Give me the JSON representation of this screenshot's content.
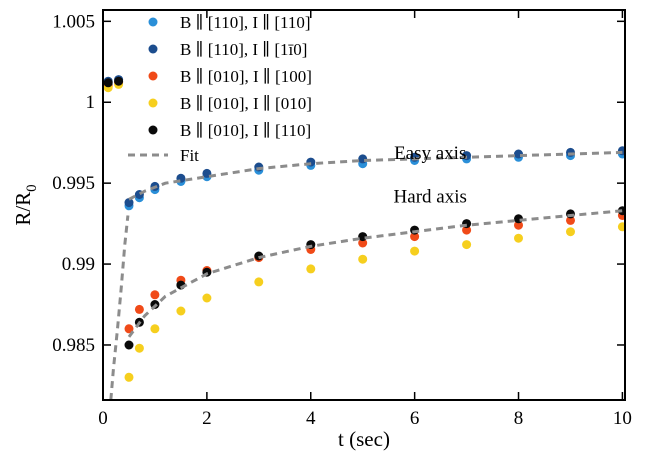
{
  "chart_data": {
    "type": "scatter",
    "xlabel": "t (sec)",
    "ylabel_main": "R/R",
    "ylabel_sub": "0",
    "xlim": [
      0,
      10.05
    ],
    "ylim": [
      0.9816,
      1.0057
    ],
    "x_ticks": [
      0,
      2,
      4,
      6,
      8,
      10
    ],
    "x_tick_labels": [
      "0",
      "2",
      "4",
      "6",
      "8",
      "10"
    ],
    "y_ticks": [
      0.985,
      0.99,
      0.995,
      1.0,
      1.005
    ],
    "y_tick_labels": [
      "0.985",
      "0.99",
      "0.995",
      "1",
      "1.005"
    ],
    "grid": false,
    "legend_position": "top-left",
    "annotations": [
      {
        "text": "Easy axis",
        "x": 6.3,
        "y": 0.9965
      },
      {
        "text": "Hard axis",
        "x": 6.3,
        "y": 0.9938
      }
    ],
    "series": [
      {
        "name": "B ∥ [110], I ∥ [110]",
        "color": "#2a8fd8",
        "marker": "circle",
        "points": [
          [
            0.1,
            1.0011
          ],
          [
            0.3,
            1.0013
          ],
          [
            0.5,
            0.9936
          ],
          [
            0.7,
            0.9941
          ],
          [
            1.0,
            0.9946
          ],
          [
            1.5,
            0.9951
          ],
          [
            2.0,
            0.9954
          ],
          [
            3.0,
            0.9958
          ],
          [
            4.0,
            0.9961
          ],
          [
            5.0,
            0.9962
          ],
          [
            6.0,
            0.9964
          ],
          [
            7.0,
            0.9965
          ],
          [
            8.0,
            0.9966
          ],
          [
            9.0,
            0.9967
          ],
          [
            10.0,
            0.9968
          ]
        ]
      },
      {
        "name": "B ∥ [110], I ∥ [1ī0]",
        "color": "#1c4d8e",
        "marker": "circle",
        "points": [
          [
            0.1,
            1.0013
          ],
          [
            0.3,
            1.0014
          ],
          [
            0.5,
            0.9938
          ],
          [
            0.7,
            0.9943
          ],
          [
            1.0,
            0.9948
          ],
          [
            1.5,
            0.9953
          ],
          [
            2.0,
            0.9956
          ],
          [
            3.0,
            0.996
          ],
          [
            4.0,
            0.9963
          ],
          [
            5.0,
            0.9965
          ],
          [
            6.0,
            0.9966
          ],
          [
            7.0,
            0.9967
          ],
          [
            8.0,
            0.9968
          ],
          [
            9.0,
            0.9969
          ],
          [
            10.0,
            0.997
          ]
        ]
      },
      {
        "name": "B ∥ [010], I ∥ [100]",
        "color": "#f04a18",
        "marker": "circle",
        "points": [
          [
            0.1,
            1.001
          ],
          [
            0.3,
            1.0012
          ],
          [
            0.5,
            0.986
          ],
          [
            0.7,
            0.9872
          ],
          [
            1.0,
            0.9881
          ],
          [
            1.5,
            0.989
          ],
          [
            2.0,
            0.9896
          ],
          [
            3.0,
            0.9904
          ],
          [
            4.0,
            0.9909
          ],
          [
            5.0,
            0.9913
          ],
          [
            6.0,
            0.9917
          ],
          [
            7.0,
            0.9921
          ],
          [
            8.0,
            0.9924
          ],
          [
            9.0,
            0.9927
          ],
          [
            10.0,
            0.993
          ]
        ]
      },
      {
        "name": "B ∥ [010], I ∥ [010]",
        "color": "#f6cf1e",
        "marker": "circle",
        "points": [
          [
            0.1,
            1.0009
          ],
          [
            0.3,
            1.0011
          ],
          [
            0.5,
            0.983
          ],
          [
            0.7,
            0.9848
          ],
          [
            1.0,
            0.986
          ],
          [
            1.5,
            0.9871
          ],
          [
            2.0,
            0.9879
          ],
          [
            3.0,
            0.9889
          ],
          [
            4.0,
            0.9897
          ],
          [
            5.0,
            0.9903
          ],
          [
            6.0,
            0.9908
          ],
          [
            7.0,
            0.9912
          ],
          [
            8.0,
            0.9916
          ],
          [
            9.0,
            0.992
          ],
          [
            10.0,
            0.9923
          ]
        ]
      },
      {
        "name": "B ∥ [010], I ∥ [110]",
        "color": "#0a0a0a",
        "marker": "circle",
        "points": [
          [
            0.1,
            1.0012
          ],
          [
            0.3,
            1.0013
          ],
          [
            0.5,
            0.985
          ],
          [
            0.7,
            0.9864
          ],
          [
            1.0,
            0.9875
          ],
          [
            1.5,
            0.9887
          ],
          [
            2.0,
            0.9895
          ],
          [
            3.0,
            0.9905
          ],
          [
            4.0,
            0.9912
          ],
          [
            5.0,
            0.9917
          ],
          [
            6.0,
            0.9921
          ],
          [
            7.0,
            0.9925
          ],
          [
            8.0,
            0.9928
          ],
          [
            9.0,
            0.9931
          ],
          [
            10.0,
            0.9933
          ]
        ]
      }
    ],
    "fit_legend_label": "Fit",
    "fit_color": "#8c8c8c",
    "fits": [
      {
        "points": [
          [
            0.5,
            0.994
          ],
          [
            0.8,
            0.9945
          ],
          [
            1.2,
            0.995
          ],
          [
            2.0,
            0.9954
          ],
          [
            3.0,
            0.9959
          ],
          [
            4.0,
            0.9962
          ],
          [
            5.0,
            0.9964
          ],
          [
            6.0,
            0.9965
          ],
          [
            7.0,
            0.9966
          ],
          [
            8.0,
            0.9967
          ],
          [
            9.0,
            0.9968
          ],
          [
            10.0,
            0.9969
          ]
        ]
      },
      {
        "points": [
          [
            0.5,
            0.9855
          ],
          [
            0.8,
            0.9868
          ],
          [
            1.2,
            0.988
          ],
          [
            2.0,
            0.9894
          ],
          [
            3.0,
            0.9904
          ],
          [
            4.0,
            0.9911
          ],
          [
            5.0,
            0.9916
          ],
          [
            6.0,
            0.992
          ],
          [
            7.0,
            0.9924
          ],
          [
            8.0,
            0.9927
          ],
          [
            9.0,
            0.993
          ],
          [
            10.0,
            0.9933
          ]
        ]
      },
      {
        "points": [
          [
            0.15,
            0.9816
          ],
          [
            0.2,
            0.9835
          ],
          [
            0.28,
            0.986
          ],
          [
            0.35,
            0.9885
          ],
          [
            0.42,
            0.9912
          ],
          [
            0.48,
            0.993
          ]
        ]
      }
    ]
  }
}
